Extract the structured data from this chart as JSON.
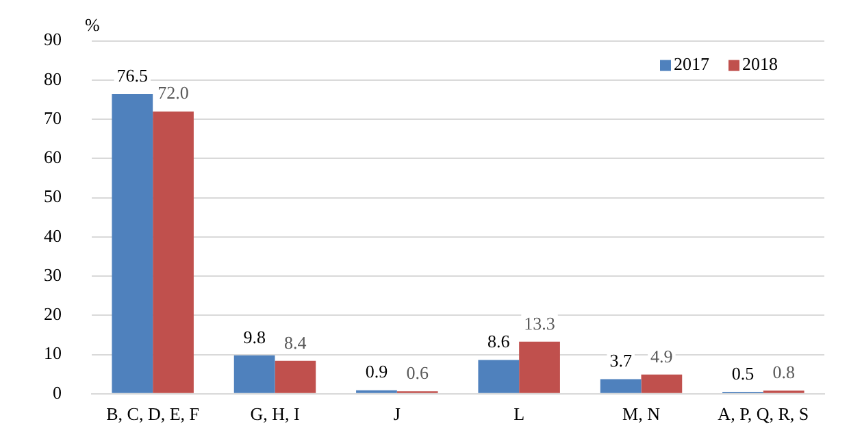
{
  "chart_data": {
    "type": "bar",
    "ylabel": "%",
    "categories": [
      "B, C, D, E, F",
      "G, H, I",
      "J",
      "L",
      "M, N",
      "A, P, Q, R, S"
    ],
    "series": [
      {
        "name": "2017",
        "color": "#4f81bd",
        "values": [
          76.5,
          9.8,
          0.9,
          8.6,
          3.7,
          0.5
        ],
        "value_labels": [
          "76.5",
          "9.8",
          "0.9",
          "8.6",
          "3.7",
          "0.5"
        ]
      },
      {
        "name": "2018",
        "color": "#c0504d",
        "values": [
          72.0,
          8.4,
          0.6,
          13.3,
          4.9,
          0.8
        ],
        "value_labels": [
          "72.0",
          "8.4",
          "0.6",
          "13.3",
          "4.9",
          "0.8"
        ]
      }
    ],
    "ylim": [
      0,
      90
    ],
    "yticks": [
      0,
      10,
      20,
      30,
      40,
      50,
      60,
      70,
      80,
      90
    ],
    "grid": "y",
    "legend": "top right"
  }
}
